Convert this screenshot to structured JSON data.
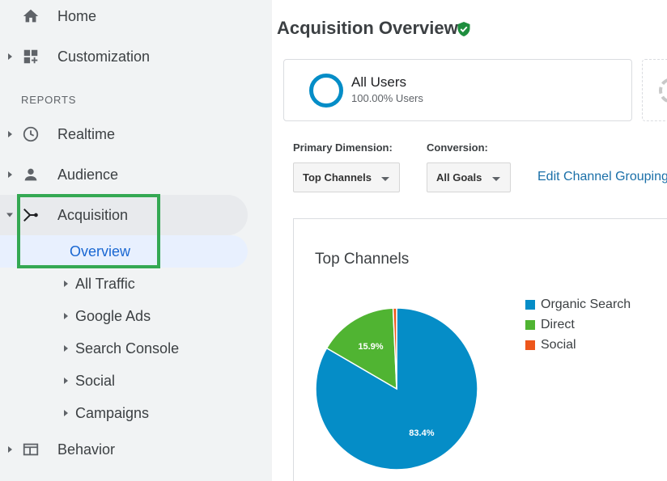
{
  "sidebar": {
    "home_label": "Home",
    "customization_label": "Customization",
    "reports_section": "REPORTS",
    "realtime_label": "Realtime",
    "audience_label": "Audience",
    "acquisition_label": "Acquisition",
    "acquisition_items": [
      "Overview",
      "All Traffic",
      "Google Ads",
      "Search Console",
      "Social",
      "Campaigns"
    ],
    "behavior_label": "Behavior"
  },
  "main": {
    "page_title": "Acquisition Overview",
    "segment": {
      "name": "All Users",
      "subtitle": "100.00% Users"
    },
    "primary_dimension_label": "Primary Dimension:",
    "primary_dimension_value": "Top Channels",
    "conversion_label": "Conversion:",
    "conversion_value": "All Goals",
    "edit_link": "Edit Channel Grouping"
  },
  "colors": {
    "organic": "#058dc7",
    "direct": "#50b432",
    "social": "#ed561b",
    "highlight": "#34a853",
    "link": "#1a6fa8"
  },
  "chart_data": {
    "type": "pie",
    "title": "Top Channels",
    "series": [
      {
        "name": "Organic Search",
        "value": 83.4,
        "label": "83.4%",
        "color": "#058dc7"
      },
      {
        "name": "Direct",
        "value": 15.9,
        "label": "15.9%",
        "color": "#50b432"
      },
      {
        "name": "Social",
        "value": 0.7,
        "label": "",
        "color": "#ed561b"
      }
    ],
    "legend_position": "right"
  }
}
